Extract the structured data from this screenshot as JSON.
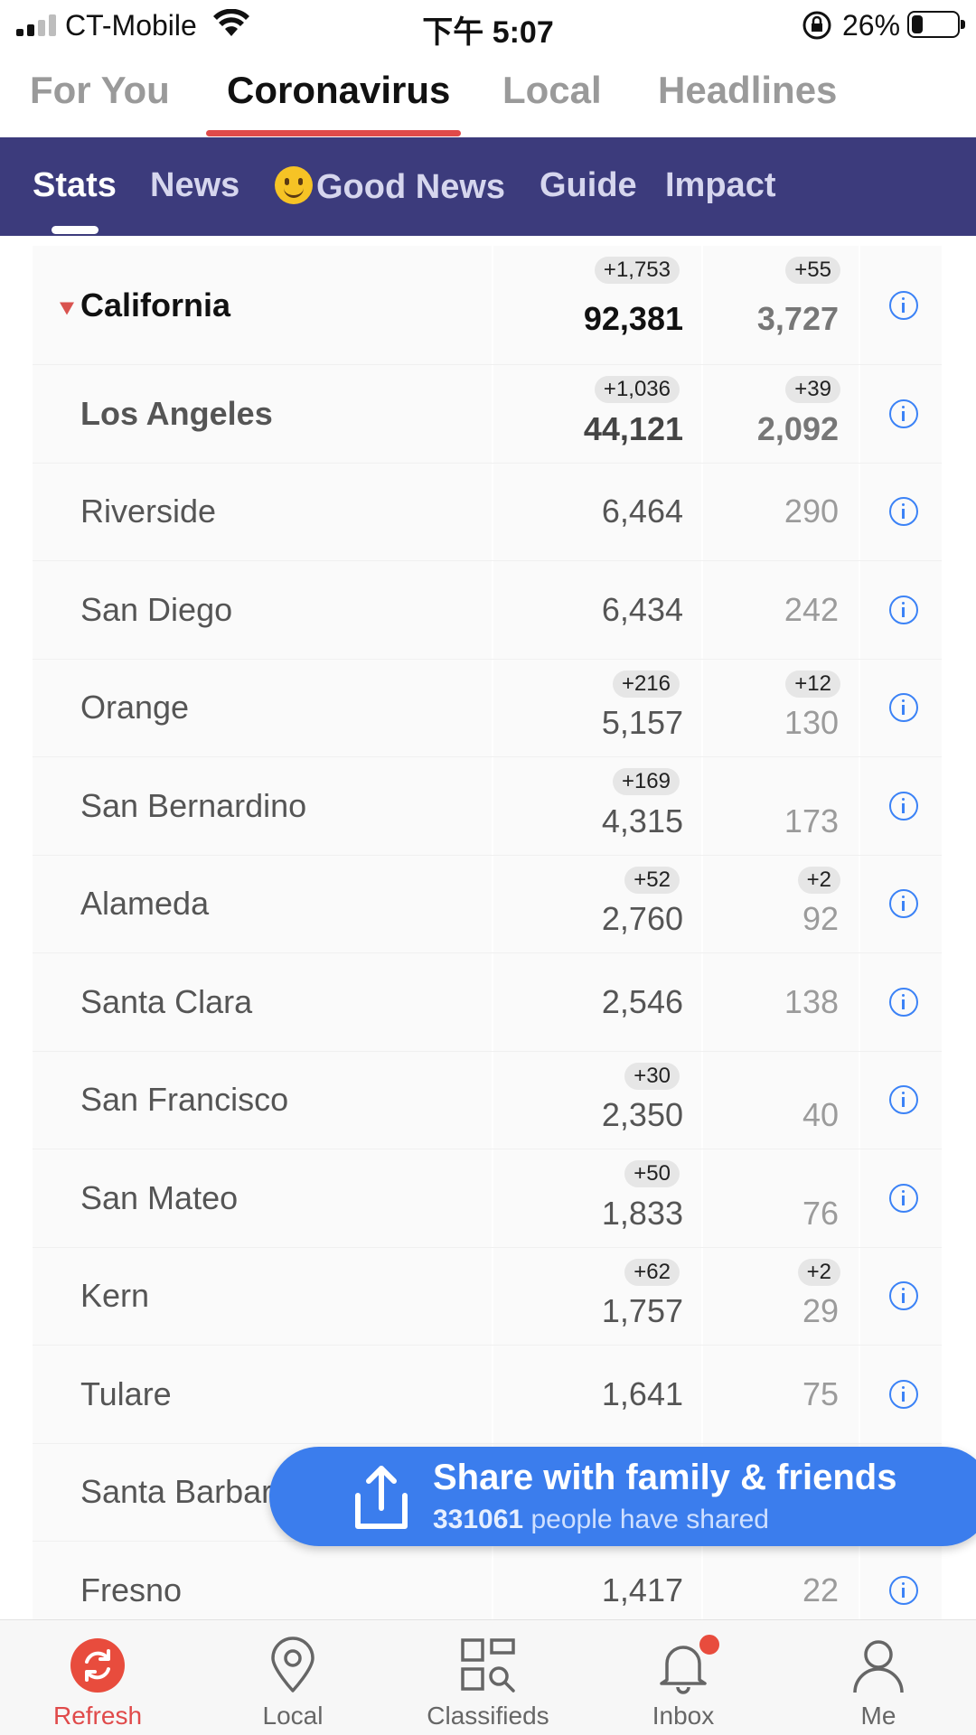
{
  "status_bar": {
    "carrier": "CT-Mobile",
    "time": "下午 5:07",
    "battery_percent": "26%",
    "battery_level": 0.26
  },
  "top_tabs": [
    {
      "label": "For You",
      "active": false
    },
    {
      "label": "Coronavirus",
      "active": true
    },
    {
      "label": "Local",
      "active": false
    },
    {
      "label": "Headlines",
      "active": false
    }
  ],
  "sub_tabs": [
    {
      "label": "Stats",
      "active": true
    },
    {
      "label": "News",
      "active": false
    },
    {
      "label": "Good News",
      "active": false,
      "icon": "smiley-emoji-icon"
    },
    {
      "label": "Guide",
      "active": false
    },
    {
      "label": "Impact",
      "active": false
    }
  ],
  "table": {
    "state": {
      "name": "California",
      "cases": "92,381",
      "cases_delta": "+1,753",
      "deaths": "3,727",
      "deaths_delta": "+55"
    },
    "rows": [
      {
        "name": "Los Angeles",
        "cases": "44,121",
        "cases_delta": "+1,036",
        "deaths": "2,092",
        "deaths_delta": "+39"
      },
      {
        "name": "Riverside",
        "cases": "6,464",
        "cases_delta": "",
        "deaths": "290",
        "deaths_delta": ""
      },
      {
        "name": "San Diego",
        "cases": "6,434",
        "cases_delta": "",
        "deaths": "242",
        "deaths_delta": ""
      },
      {
        "name": "Orange",
        "cases": "5,157",
        "cases_delta": "+216",
        "deaths": "130",
        "deaths_delta": "+12"
      },
      {
        "name": "San Bernardino",
        "cases": "4,315",
        "cases_delta": "+169",
        "deaths": "173",
        "deaths_delta": ""
      },
      {
        "name": "Alameda",
        "cases": "2,760",
        "cases_delta": "+52",
        "deaths": "92",
        "deaths_delta": "+2"
      },
      {
        "name": "Santa Clara",
        "cases": "2,546",
        "cases_delta": "",
        "deaths": "138",
        "deaths_delta": ""
      },
      {
        "name": "San Francisco",
        "cases": "2,350",
        "cases_delta": "+30",
        "deaths": "40",
        "deaths_delta": ""
      },
      {
        "name": "San Mateo",
        "cases": "1,833",
        "cases_delta": "+50",
        "deaths": "76",
        "deaths_delta": ""
      },
      {
        "name": "Kern",
        "cases": "1,757",
        "cases_delta": "+62",
        "deaths": "29",
        "deaths_delta": "+2"
      },
      {
        "name": "Tulare",
        "cases": "1,641",
        "cases_delta": "",
        "deaths": "75",
        "deaths_delta": ""
      },
      {
        "name": "Santa Barbar",
        "cases": "",
        "cases_delta": "",
        "deaths": "",
        "deaths_delta": ""
      },
      {
        "name": "Fresno",
        "cases": "1,417",
        "cases_delta": "",
        "deaths": "22",
        "deaths_delta": ""
      }
    ]
  },
  "share_banner": {
    "title": "Share with family & friends",
    "count": "331061",
    "suffix": "people have shared"
  },
  "bottom_nav": [
    {
      "label": "Refresh",
      "icon": "refresh-icon",
      "active": true
    },
    {
      "label": "Local",
      "icon": "location-pin-icon",
      "active": false
    },
    {
      "label": "Classifieds",
      "icon": "classifieds-icon",
      "active": false
    },
    {
      "label": "Inbox",
      "icon": "bell-icon",
      "active": false,
      "badge": true
    },
    {
      "label": "Me",
      "icon": "person-icon",
      "active": false
    }
  ],
  "colors": {
    "accent_red": "#e04a4a",
    "subtab_bg": "#3c3b7c",
    "info_blue": "#3b82f6",
    "share_blue": "#3b7ded"
  }
}
